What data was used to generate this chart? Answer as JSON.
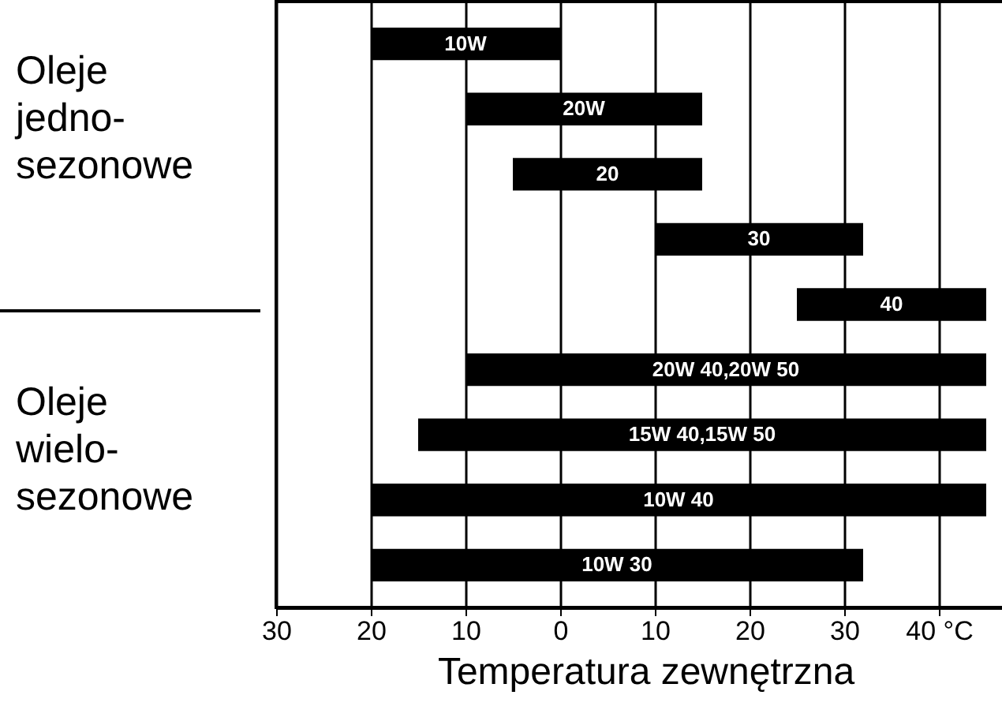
{
  "chart_data": {
    "type": "bar",
    "orientation": "horizontal",
    "xlabel": "Temperatura zewnętrzna",
    "categories": [
      "10W",
      "20W",
      "20",
      "30",
      "40",
      "20W 40,20W 50",
      "15W 40,15W 50",
      "10W 40",
      "10W 30"
    ],
    "base": [
      -20,
      -10,
      -5,
      10,
      25,
      -10,
      -15,
      -20,
      -20
    ],
    "values": [
      20,
      25,
      20,
      22,
      20,
      55,
      60,
      65,
      52
    ],
    "color": "#000000",
    "xlim": [
      -30,
      48
    ],
    "xticks": [
      {
        "value": -30,
        "label": "30"
      },
      {
        "value": -20,
        "label": "20"
      },
      {
        "value": -10,
        "label": "10"
      },
      0,
      10,
      20,
      30,
      {
        "value": 40,
        "label": "40 °C"
      }
    ],
    "grid": "x",
    "annotations": [
      "Oleje jedno-sezonowe",
      "Oleje wielo-sezonowe"
    ]
  }
}
